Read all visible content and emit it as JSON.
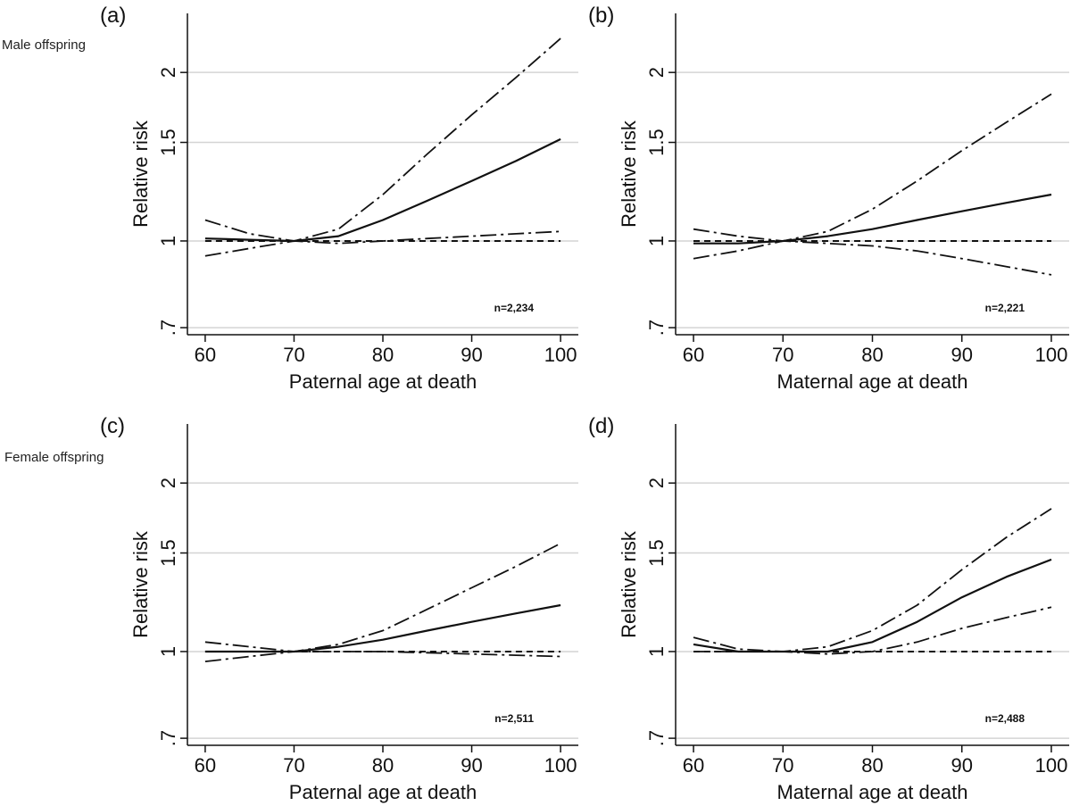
{
  "row_labels": [
    "Male offspring",
    "Female offspring"
  ],
  "chart_data": [
    {
      "type": "line",
      "panel_label": "(a)",
      "xlabel": "Paternal age at death",
      "ylabel": "Relative risk",
      "xlim": [
        58,
        102
      ],
      "ylim": [
        0.68,
        2.55
      ],
      "y_scale": "log",
      "x_ticks": [
        60,
        70,
        80,
        90,
        100
      ],
      "x_tick_labels": [
        "60",
        "70",
        "80",
        "90",
        "100"
      ],
      "y_ticks": [
        0.7,
        1,
        1.5,
        2
      ],
      "y_tick_labels": [
        ".7",
        "1",
        "1.5",
        "2"
      ],
      "grid": true,
      "annotation": "n=2,234",
      "x": [
        60,
        65,
        70,
        75,
        80,
        85,
        90,
        95,
        100
      ],
      "series": [
        {
          "style": "solid",
          "values": [
            1.01,
            1.005,
            1.0,
            1.02,
            1.09,
            1.18,
            1.28,
            1.39,
            1.52
          ]
        },
        {
          "style": "dashdot",
          "values": [
            1.09,
            1.03,
            1.0,
            1.05,
            1.21,
            1.43,
            1.68,
            1.96,
            2.3
          ]
        },
        {
          "style": "dashdot",
          "values": [
            0.94,
            0.97,
            1.0,
            0.99,
            1.0,
            1.01,
            1.02,
            1.03,
            1.04
          ]
        },
        {
          "style": "dashed",
          "values": [
            1,
            1,
            1,
            1,
            1,
            1,
            1,
            1,
            1
          ]
        }
      ]
    },
    {
      "type": "line",
      "panel_label": "(b)",
      "xlabel": "Maternal age at death",
      "ylabel": "Relative risk",
      "xlim": [
        58,
        102
      ],
      "ylim": [
        0.68,
        2.55
      ],
      "y_scale": "log",
      "x_ticks": [
        60,
        70,
        80,
        90,
        100
      ],
      "x_tick_labels": [
        "60",
        "70",
        "80",
        "90",
        "100"
      ],
      "y_ticks": [
        0.7,
        1,
        1.5,
        2
      ],
      "y_tick_labels": [
        ".7",
        "1",
        "1.5",
        "2"
      ],
      "grid": true,
      "annotation": "n=2,221",
      "x": [
        60,
        65,
        70,
        75,
        80,
        85,
        90,
        95,
        100
      ],
      "series": [
        {
          "style": "solid",
          "values": [
            0.99,
            0.99,
            1.0,
            1.02,
            1.05,
            1.09,
            1.13,
            1.17,
            1.21
          ]
        },
        {
          "style": "dashdot",
          "values": [
            1.05,
            1.02,
            1.0,
            1.04,
            1.14,
            1.28,
            1.45,
            1.63,
            1.83
          ]
        },
        {
          "style": "dashdot",
          "values": [
            0.93,
            0.96,
            1.0,
            0.99,
            0.98,
            0.96,
            0.93,
            0.9,
            0.87
          ]
        },
        {
          "style": "dashed",
          "values": [
            1,
            1,
            1,
            1,
            1,
            1,
            1,
            1,
            1
          ]
        }
      ]
    },
    {
      "type": "line",
      "panel_label": "(c)",
      "xlabel": "Paternal age at death",
      "ylabel": "Relative risk",
      "xlim": [
        58,
        102
      ],
      "ylim": [
        0.68,
        2.55
      ],
      "y_scale": "log",
      "x_ticks": [
        60,
        70,
        80,
        90,
        100
      ],
      "x_tick_labels": [
        "60",
        "70",
        "80",
        "90",
        "100"
      ],
      "y_ticks": [
        0.7,
        1,
        1.5,
        2
      ],
      "y_tick_labels": [
        ".7",
        "1",
        "1.5",
        "2"
      ],
      "grid": true,
      "annotation": "n=2,511",
      "x": [
        60,
        65,
        70,
        75,
        80,
        85,
        90,
        95,
        100
      ],
      "series": [
        {
          "style": "solid",
          "values": [
            1.0,
            1.0,
            1.0,
            1.02,
            1.05,
            1.09,
            1.13,
            1.17,
            1.21
          ]
        },
        {
          "style": "dashdot",
          "values": [
            1.04,
            1.02,
            1.0,
            1.03,
            1.09,
            1.19,
            1.3,
            1.42,
            1.56
          ]
        },
        {
          "style": "dashdot",
          "values": [
            0.96,
            0.98,
            1.0,
            1.0,
            1.0,
            0.995,
            0.99,
            0.985,
            0.98
          ]
        },
        {
          "style": "dashed",
          "values": [
            1,
            1,
            1,
            1,
            1,
            1,
            1,
            1,
            1
          ]
        }
      ]
    },
    {
      "type": "line",
      "panel_label": "(d)",
      "xlabel": "Maternal age at death",
      "ylabel": "Relative risk",
      "xlim": [
        58,
        102
      ],
      "ylim": [
        0.68,
        2.55
      ],
      "y_scale": "log",
      "x_ticks": [
        60,
        70,
        80,
        90,
        100
      ],
      "x_tick_labels": [
        "60",
        "70",
        "80",
        "90",
        "100"
      ],
      "y_ticks": [
        0.7,
        1,
        1.5,
        2
      ],
      "y_tick_labels": [
        ".7",
        "1",
        "1.5",
        "2"
      ],
      "grid": true,
      "annotation": "n=2,488",
      "x": [
        60,
        65,
        70,
        75,
        80,
        85,
        90,
        95,
        100
      ],
      "series": [
        {
          "style": "solid",
          "values": [
            1.03,
            1.0,
            1.0,
            1.0,
            1.04,
            1.13,
            1.25,
            1.36,
            1.46
          ]
        },
        {
          "style": "dashdot",
          "values": [
            1.06,
            1.01,
            1.0,
            1.02,
            1.09,
            1.21,
            1.4,
            1.6,
            1.8
          ]
        },
        {
          "style": "dashdot",
          "values": [
            1.0,
            1.0,
            1.0,
            0.99,
            1.0,
            1.04,
            1.1,
            1.15,
            1.2
          ]
        },
        {
          "style": "dashed",
          "values": [
            1,
            1,
            1,
            1,
            1,
            1,
            1,
            1,
            1
          ]
        }
      ]
    }
  ]
}
